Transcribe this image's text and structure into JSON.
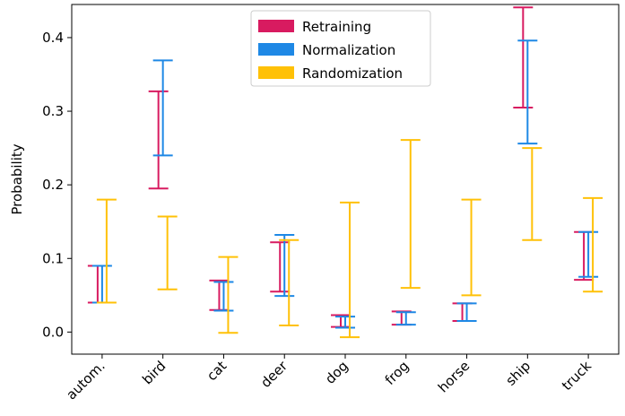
{
  "chart_data": {
    "type": "errorbar",
    "title": "",
    "xlabel": "",
    "ylabel": "Probability",
    "ylim": [
      -0.03,
      0.445
    ],
    "yticks": [
      0.0,
      0.1,
      0.2,
      0.3,
      0.4
    ],
    "ytick_labels": [
      "0.0",
      "0.1",
      "0.2",
      "0.3",
      "0.4"
    ],
    "grid": false,
    "legend_position": "top-center",
    "categories": [
      "autom.",
      "bird",
      "cat",
      "deer",
      "dog",
      "frog",
      "horse",
      "ship",
      "truck"
    ],
    "series": [
      {
        "name": "Retraining",
        "color": "#d81b60",
        "ranges": [
          [
            0.04,
            0.09
          ],
          [
            0.195,
            0.327
          ],
          [
            0.03,
            0.07
          ],
          [
            0.055,
            0.122
          ],
          [
            0.007,
            0.023
          ],
          [
            0.01,
            0.028
          ],
          [
            0.015,
            0.039
          ],
          [
            0.305,
            0.441
          ],
          [
            0.071,
            0.136
          ]
        ]
      },
      {
        "name": "Normalization",
        "color": "#1e88e5",
        "ranges": [
          [
            0.04,
            0.09
          ],
          [
            0.24,
            0.369
          ],
          [
            0.029,
            0.068
          ],
          [
            0.049,
            0.132
          ],
          [
            0.006,
            0.021
          ],
          [
            0.01,
            0.027
          ],
          [
            0.015,
            0.039
          ],
          [
            0.256,
            0.396
          ],
          [
            0.075,
            0.136
          ]
        ]
      },
      {
        "name": "Randomization",
        "color": "#ffc107",
        "ranges": [
          [
            0.04,
            0.18
          ],
          [
            0.058,
            0.157
          ],
          [
            -0.001,
            0.102
          ],
          [
            0.009,
            0.125
          ],
          [
            -0.007,
            0.176
          ],
          [
            0.06,
            0.261
          ],
          [
            0.05,
            0.18
          ],
          [
            0.125,
            0.25
          ],
          [
            0.055,
            0.182
          ]
        ]
      }
    ]
  }
}
